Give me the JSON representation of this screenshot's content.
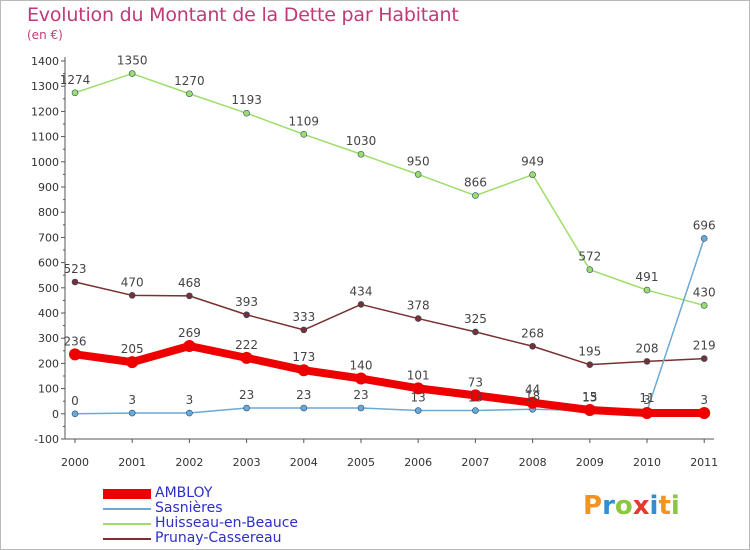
{
  "title": "Evolution du Montant de la Dette par Habitant",
  "unit": "(en €)",
  "logo": {
    "text": "Proxiti",
    "letter_colors": [
      "#f2941f",
      "#2f8fd1",
      "#8dc63f",
      "#e8392f",
      "#2f8fd1",
      "#f2941f",
      "#8dc63f"
    ]
  },
  "chart_data": {
    "type": "line",
    "title": "Evolution du Montant de la Dette par Habitant",
    "subtitle": "(en €)",
    "xlabel": "",
    "ylabel": "",
    "x": [
      "2000",
      "2001",
      "2002",
      "2003",
      "2004",
      "2005",
      "2006",
      "2007",
      "2008",
      "2009",
      "2010",
      "2011"
    ],
    "ylim": [
      -100,
      1400
    ],
    "yticks": [
      -100,
      0,
      100,
      200,
      300,
      400,
      500,
      600,
      700,
      800,
      900,
      1000,
      1100,
      1200,
      1300,
      1400
    ],
    "grid": false,
    "legend_position": "bottom-left",
    "series": [
      {
        "name": "AMBLOY",
        "color": "#ee0000",
        "values": [
          236,
          205,
          269,
          222,
          173,
          140,
          101,
          73,
          44,
          15,
          3,
          3
        ],
        "labels": [
          "236",
          "205",
          "269",
          "222",
          "173",
          "140",
          "101",
          "73",
          "44",
          "15",
          "3",
          "3"
        ]
      },
      {
        "name": "Sasnières",
        "color": "#6aaad6",
        "values": [
          0,
          3,
          3,
          23,
          23,
          23,
          13,
          13,
          18,
          13,
          11,
          696
        ],
        "labels": [
          "0",
          "3",
          "3",
          "23",
          "23",
          "23",
          "13",
          "13",
          "18",
          "13",
          "11",
          "696"
        ]
      },
      {
        "name": "Huisseau-en-Beauce",
        "color": "#9dde6a",
        "values": [
          1274,
          1350,
          1270,
          1193,
          1109,
          1030,
          950,
          866,
          949,
          572,
          491,
          430
        ],
        "labels": [
          "1274",
          "1350",
          "1270",
          "1193",
          "1109",
          "1030",
          "950",
          "866",
          "949",
          "572",
          "491",
          "430"
        ]
      },
      {
        "name": "Prunay-Cassereau",
        "color": "#7a3030",
        "values": [
          523,
          470,
          468,
          393,
          333,
          434,
          378,
          325,
          268,
          195,
          208,
          219
        ],
        "labels": [
          "523",
          "470",
          "468",
          "393",
          "333",
          "434",
          "378",
          "325",
          "268",
          "195",
          "208",
          "219"
        ]
      }
    ]
  }
}
